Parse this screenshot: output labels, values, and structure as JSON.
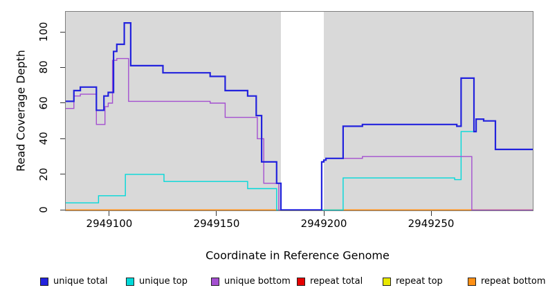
{
  "chart_data": {
    "type": "line",
    "title": "",
    "xlabel": "Coordinate in Reference Genome",
    "ylabel": "Read Coverage Depth",
    "xlim": [
      2949079.7,
      2949297.4
    ],
    "ylim": [
      0,
      111.5
    ],
    "x_tick_values": [
      2949100,
      2949150,
      2949200,
      2949250
    ],
    "x_tick_labels": [
      "2949100",
      "2949150",
      "2949200",
      "2949250"
    ],
    "y_tick_values": [
      0,
      20,
      40,
      60,
      80,
      100
    ],
    "y_tick_labels": [
      "0",
      "20",
      "40",
      "60",
      "80",
      "100"
    ],
    "plot_bg": "#d9d9d9",
    "no_data_gap": [
      2949180,
      2949200
    ],
    "legend_position": "bottom",
    "grid": false,
    "series": [
      {
        "name": "unique total",
        "color": "#2222dd",
        "width": 2.2,
        "segments": [
          {
            "steps": [
              [
                2949079.7,
                61
              ],
              [
                2949083.5,
                67
              ],
              [
                2949086.5,
                69
              ],
              [
                2949094,
                56
              ],
              [
                2949097.5,
                64
              ],
              [
                2949099.5,
                66
              ],
              [
                2949102,
                89
              ],
              [
                2949103.5,
                93
              ],
              [
                2949107,
                105
              ],
              [
                2949110,
                81
              ],
              [
                2949125,
                77
              ],
              [
                2949147,
                75
              ],
              [
                2949154,
                67
              ],
              [
                2949164.5,
                64
              ],
              [
                2949168.5,
                53
              ],
              [
                2949171,
                27
              ],
              [
                2949178,
                15
              ],
              [
                2949180,
                0
              ],
              [
                2949199,
                27
              ],
              [
                2949200,
                28
              ],
              [
                2949201,
                29
              ],
              [
                2949209,
                47
              ],
              [
                2949218,
                48
              ],
              [
                2949262,
                47
              ],
              [
                2949264,
                74
              ],
              [
                2949270,
                44
              ],
              [
                2949271,
                51
              ],
              [
                2949274.5,
                50
              ],
              [
                2949280,
                34
              ]
            ],
            "end": 2949297.4
          }
        ]
      },
      {
        "name": "unique top",
        "color": "#00d9d9",
        "width": 1.4,
        "segments": [
          {
            "steps": [
              [
                2949079.7,
                4
              ],
              [
                2949095,
                8
              ],
              [
                2949107.5,
                20
              ],
              [
                2949125.5,
                16
              ],
              [
                2949164.5,
                12
              ],
              [
                2949178,
                0
              ],
              [
                2949209,
                18
              ],
              [
                2949261,
                17
              ],
              [
                2949264,
                44
              ],
              [
                2949271,
                51
              ],
              [
                2949274.5,
                50
              ],
              [
                2949280,
                34
              ]
            ],
            "end": 2949297.4
          }
        ]
      },
      {
        "name": "unique bottom",
        "color": "#a44fd0",
        "width": 1.4,
        "segments": [
          {
            "steps": [
              [
                2949079.7,
                57
              ],
              [
                2949083.5,
                64
              ],
              [
                2949086.5,
                65
              ],
              [
                2949094,
                48
              ],
              [
                2949098,
                58
              ],
              [
                2949099.5,
                60
              ],
              [
                2949101.5,
                84
              ],
              [
                2949103.5,
                85
              ],
              [
                2949109,
                61
              ],
              [
                2949147,
                60
              ],
              [
                2949154,
                52
              ],
              [
                2949169,
                40
              ],
              [
                2949172,
                15
              ],
              [
                2949179,
                0
              ],
              [
                2949199,
                27
              ],
              [
                2949200,
                28
              ],
              [
                2949201,
                29
              ],
              [
                2949218,
                30
              ],
              [
                2949269,
                0
              ]
            ],
            "end": 2949297.4
          }
        ]
      },
      {
        "name": "repeat total",
        "color": "#e60000",
        "width": 1,
        "segments": [
          {
            "steps": [
              [
                2949079.7,
                0
              ]
            ],
            "end": 2949180
          },
          {
            "steps": [
              [
                2949200,
                0
              ]
            ],
            "end": 2949297.4
          }
        ]
      },
      {
        "name": "repeat top",
        "color": "#e8e800",
        "width": 1,
        "segments": [
          {
            "steps": [
              [
                2949079.7,
                0
              ]
            ],
            "end": 2949180
          },
          {
            "steps": [
              [
                2949200,
                0
              ]
            ],
            "end": 2949297.4
          }
        ]
      },
      {
        "name": "repeat bottom",
        "color": "#ff9015",
        "width": 1.8,
        "segments": [
          {
            "steps": [
              [
                2949079.7,
                0
              ]
            ],
            "end": 2949180
          },
          {
            "steps": [
              [
                2949200,
                0
              ]
            ],
            "end": 2949297.4
          }
        ]
      }
    ]
  },
  "layout": {
    "legend_lefts": [
      58,
      182,
      305,
      429,
      553,
      676
    ],
    "draw_order": [
      3,
      4,
      5,
      1,
      2,
      0
    ]
  }
}
